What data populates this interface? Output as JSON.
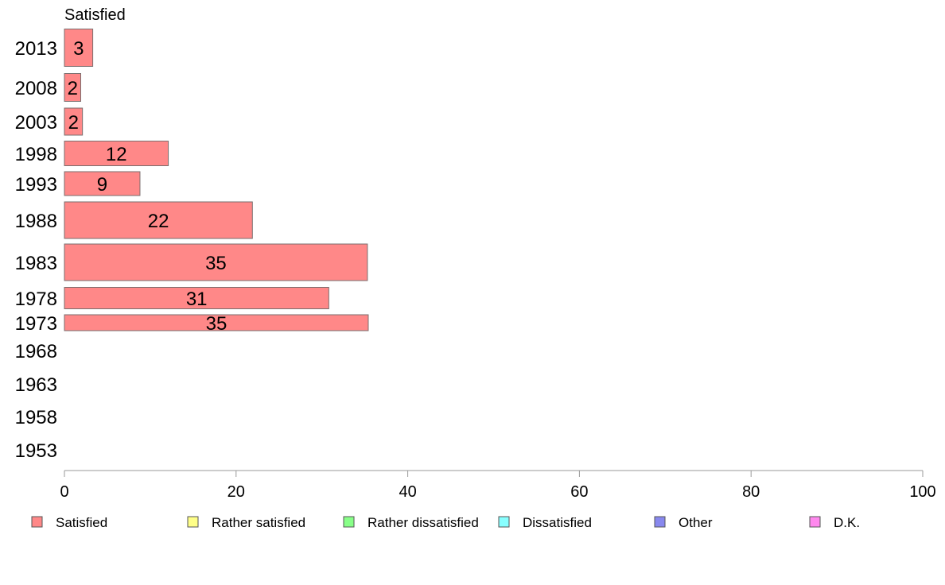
{
  "chart_data": {
    "type": "bar",
    "orientation": "horizontal",
    "panel_title": "Satisfied",
    "categories": [
      "2013",
      "2008",
      "2003",
      "1998",
      "1993",
      "1988",
      "1983",
      "1978",
      "1973",
      "1968",
      "1963",
      "1958",
      "1953"
    ],
    "series": [
      {
        "name": "Satisfied",
        "color": "#ff8888",
        "values": [
          3.3,
          1.9,
          2.1,
          12.1,
          8.8,
          21.9,
          35.3,
          30.8,
          35.4,
          null,
          null,
          null,
          null
        ],
        "labels": [
          "3",
          "2",
          "2",
          "12",
          "9",
          "22",
          "35",
          "31",
          "35",
          "",
          "",
          "",
          ""
        ]
      }
    ],
    "xlim": [
      0,
      100
    ],
    "xticks": [
      0,
      20,
      40,
      60,
      80,
      100
    ],
    "grid": false,
    "legend": {
      "position": "bottom",
      "items": [
        {
          "label": "Satisfied",
          "color": "#ff8888"
        },
        {
          "label": "Rather satisfied",
          "color": "#ffff88"
        },
        {
          "label": "Rather dissatisfied",
          "color": "#88ff88"
        },
        {
          "label": "Dissatisfied",
          "color": "#88ffff"
        },
        {
          "label": "Other",
          "color": "#8888ee"
        },
        {
          "label": "D.K.",
          "color": "#ff88ee"
        }
      ]
    }
  }
}
